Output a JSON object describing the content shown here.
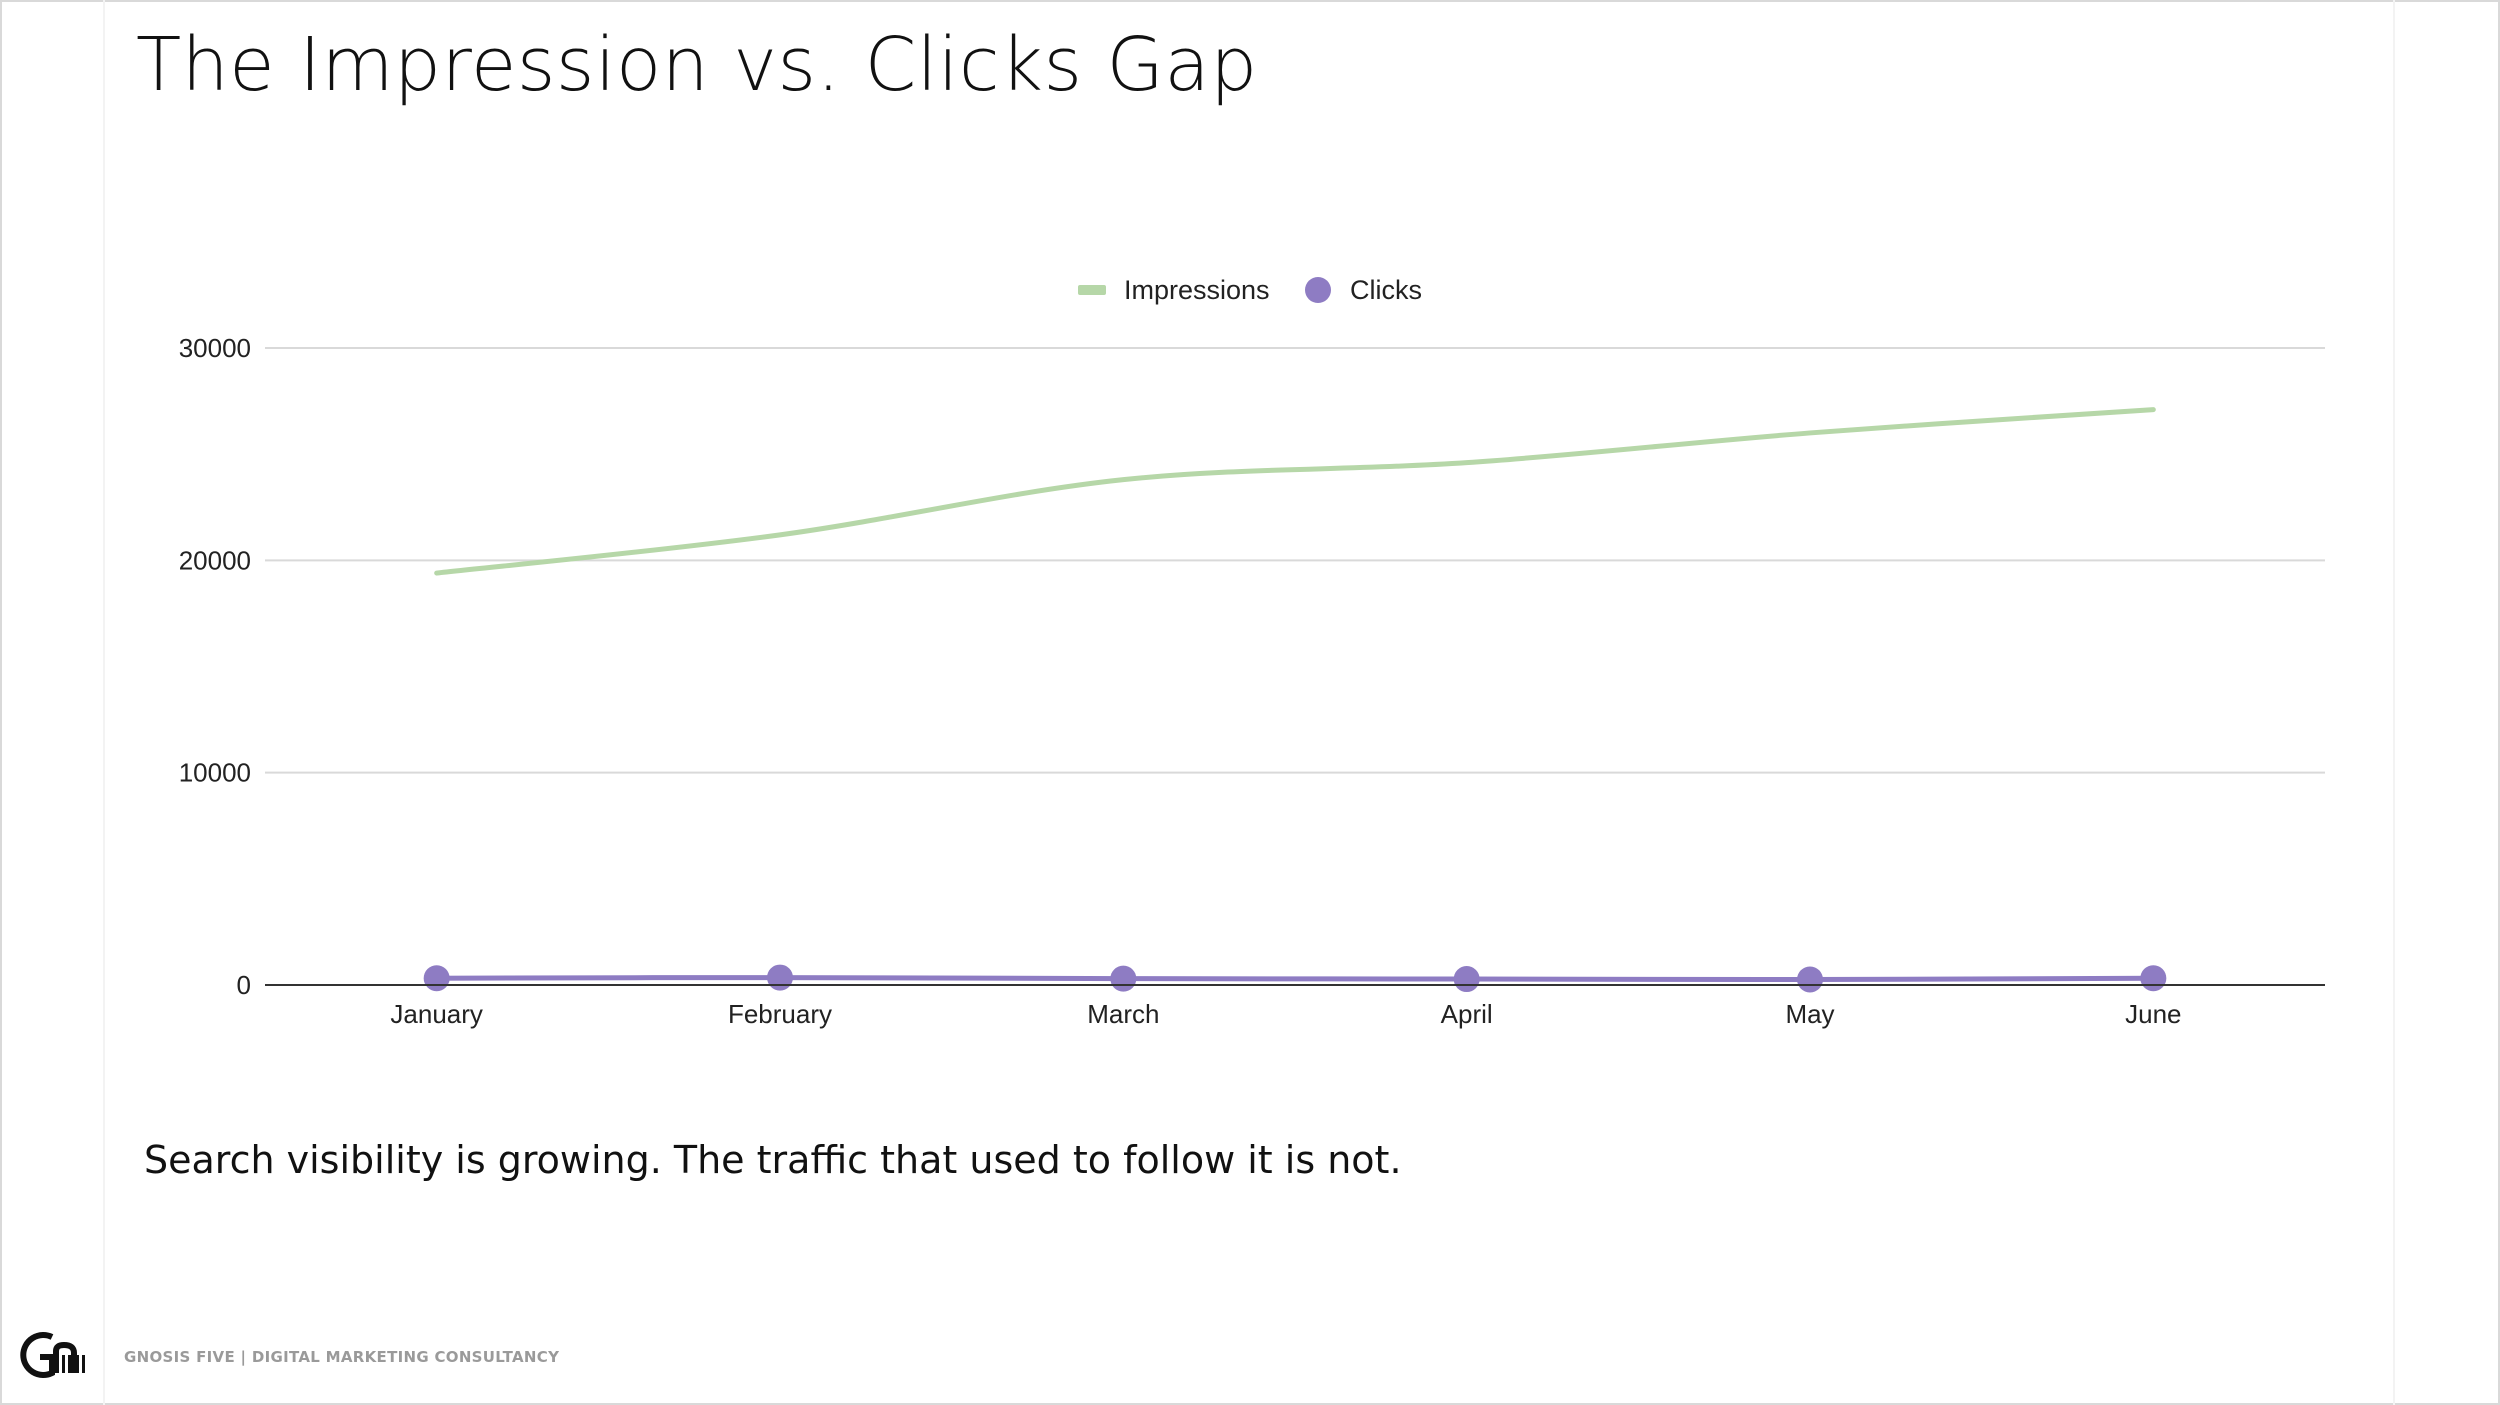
{
  "slide": {
    "title": "The Impression vs. Clicks Gap",
    "subtitle": "Search visibility is growing. The traffic that used to follow it is not.",
    "footer_text": "GNOSIS FIVE | DIGITAL MARKETING CONSULTANCY",
    "logo_text": "Gn"
  },
  "colors": {
    "impressions": "#b6d7a8",
    "clicks": "#8e7cc3",
    "grid": "#d9d9d9",
    "axis": "#333333",
    "text": "#222222"
  },
  "chart_data": {
    "type": "line",
    "title": "",
    "xlabel": "",
    "ylabel": "",
    "categories": [
      "January",
      "February",
      "March",
      "April",
      "May",
      "June"
    ],
    "ylim": [
      0,
      30000
    ],
    "yticks": [
      0,
      10000,
      20000,
      30000
    ],
    "grid": true,
    "legend_position": "top-center",
    "series": [
      {
        "name": "Impressions",
        "values": [
          19400,
          21200,
          23800,
          24600,
          26000,
          27100
        ],
        "style": "smooth-line"
      },
      {
        "name": "Clicks",
        "values": [
          320,
          350,
          300,
          280,
          260,
          320
        ],
        "style": "line-with-markers"
      }
    ]
  }
}
